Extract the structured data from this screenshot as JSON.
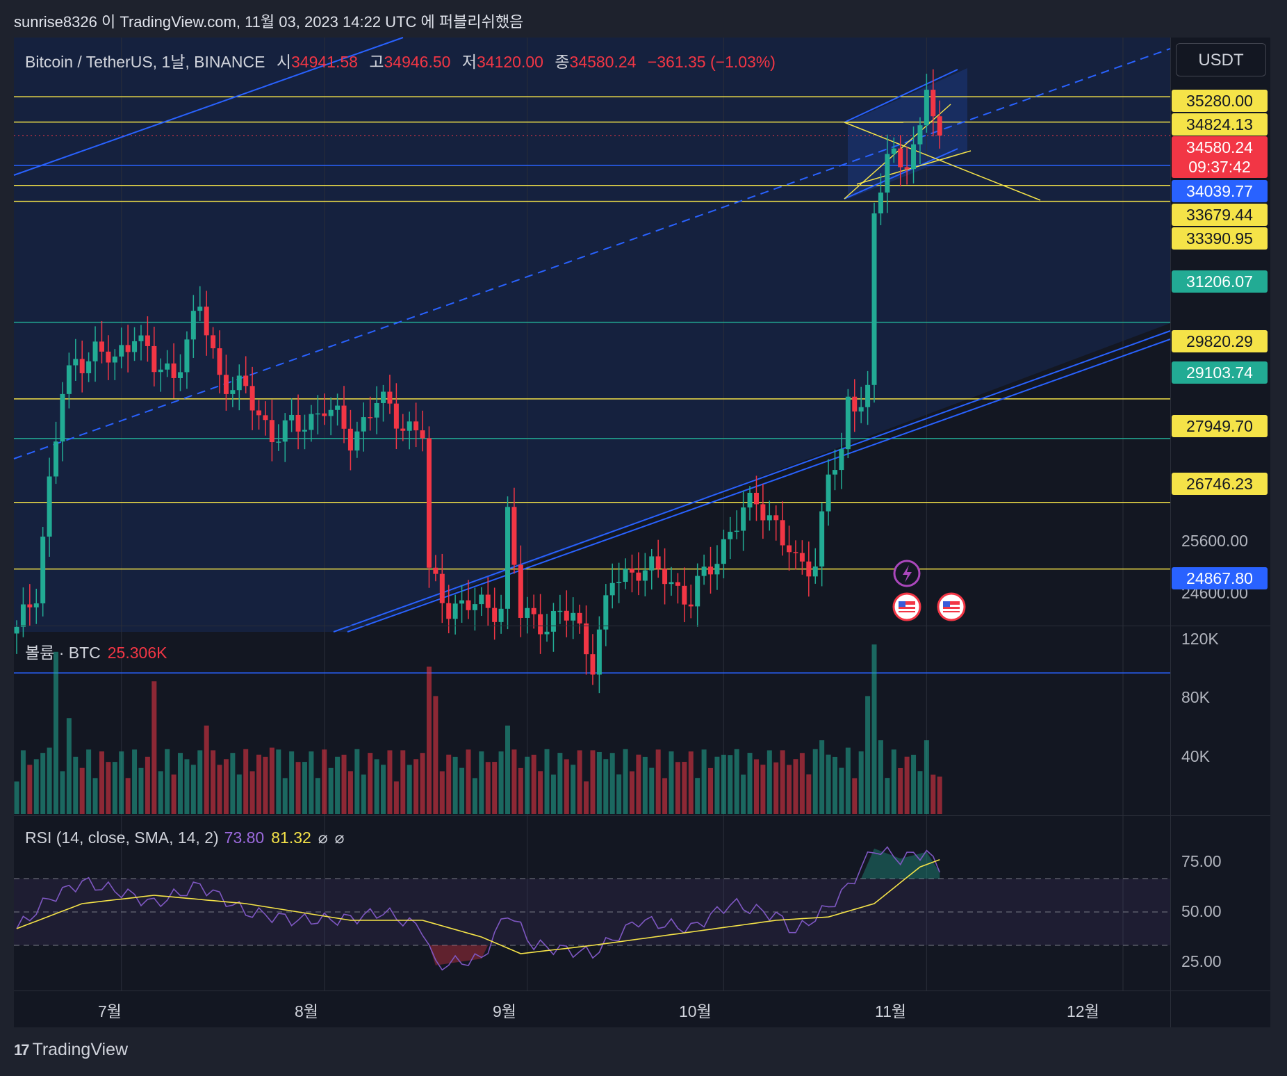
{
  "header": {
    "text": "sunrise8326 이 TradingView.com, 11월 03, 2023 14:22 UTC 에 퍼블리쉬했음"
  },
  "legend": {
    "symbol": "Bitcoin / TetherUS, 1날, BINANCE",
    "open_label": "시",
    "open": "34941.58",
    "high_label": "고",
    "high": "34946.50",
    "low_label": "저",
    "low": "34120.00",
    "close_label": "종",
    "close": "34580.24",
    "change": "−361.35 (−1.03%)"
  },
  "currency_button": "USDT",
  "volume_legend": {
    "label": "볼륨 · BTC",
    "value": "25.306K"
  },
  "rsi_legend": {
    "label": "RSI (14, close, SMA, 14, 2)",
    "rsi": "73.80",
    "sma": "81.32",
    "sym1": "⌀",
    "sym2": "⌀"
  },
  "price_ticks": [
    "25600.00",
    "24600.00"
  ],
  "price_tags": [
    {
      "text": "35280.00",
      "bg": "#f5e348",
      "fg": "#131722"
    },
    {
      "text": "34824.13",
      "bg": "#f5e348",
      "fg": "#131722"
    },
    {
      "text": "34580.24",
      "bg": "#f23645",
      "fg": "#ffffff"
    },
    {
      "text": "09:37:42",
      "bg": "#f23645",
      "fg": "#ffffff"
    },
    {
      "text": "34039.77",
      "bg": "#2962ff",
      "fg": "#ffffff"
    },
    {
      "text": "33679.44",
      "bg": "#f5e348",
      "fg": "#131722"
    },
    {
      "text": "33390.95",
      "bg": "#f5e348",
      "fg": "#131722"
    },
    {
      "text": "31206.07",
      "bg": "#22ab94",
      "fg": "#ffffff"
    },
    {
      "text": "29820.29",
      "bg": "#f5e348",
      "fg": "#131722"
    },
    {
      "text": "29103.74",
      "bg": "#22ab94",
      "fg": "#ffffff"
    },
    {
      "text": "27949.70",
      "bg": "#f5e348",
      "fg": "#131722"
    },
    {
      "text": "26746.23",
      "bg": "#f5e348",
      "fg": "#131722"
    },
    {
      "text": "24867.80",
      "bg": "#2962ff",
      "fg": "#ffffff"
    }
  ],
  "volume_ticks": [
    "120K",
    "80K",
    "40K"
  ],
  "rsi_ticks": [
    "75.00",
    "50.00",
    "25.00"
  ],
  "x_labels": [
    "7월",
    "8월",
    "9월",
    "10월",
    "11월",
    "12월"
  ],
  "footer": {
    "logo": "17",
    "brand": "TradingView"
  },
  "colors": {
    "up": "#22ab94",
    "down": "#f23645",
    "channel": "#2962ff",
    "level": "#f5e348",
    "rsi": "#7e57c2",
    "rsi_sma": "#f5e348"
  },
  "chart_data": [
    {
      "type": "candlestick",
      "title": "Bitcoin / TetherUS, 1날, BINANCE",
      "x_range": [
        "2023-06-15",
        "2023-12-15"
      ],
      "ylim": [
        24000,
        36500
      ],
      "horizontal_levels": [
        35280.0,
        34824.13,
        34039.77,
        33679.44,
        33390.95,
        31206.07,
        29820.29,
        29103.74,
        27949.7,
        26746.23,
        24867.8
      ],
      "last_price": 34580.24,
      "close_series": [
        [
          "2023-06-15",
          25580
        ],
        [
          "2023-06-18",
          26400
        ],
        [
          "2023-06-20",
          28300
        ],
        [
          "2023-06-22",
          29900
        ],
        [
          "2023-06-24",
          30500
        ],
        [
          "2023-06-27",
          30700
        ],
        [
          "2023-06-30",
          30450
        ],
        [
          "2023-07-03",
          31100
        ],
        [
          "2023-07-06",
          30350
        ],
        [
          "2023-07-09",
          30300
        ],
        [
          "2023-07-13",
          31450
        ],
        [
          "2023-07-16",
          30250
        ],
        [
          "2023-07-20",
          29900
        ],
        [
          "2023-07-24",
          29200
        ],
        [
          "2023-07-28",
          29300
        ],
        [
          "2023-08-01",
          29700
        ],
        [
          "2023-08-05",
          29100
        ],
        [
          "2023-08-09",
          29780
        ],
        [
          "2023-08-13",
          29400
        ],
        [
          "2023-08-16",
          29200
        ],
        [
          "2023-08-17",
          26600
        ],
        [
          "2023-08-20",
          26100
        ],
        [
          "2023-08-25",
          26050
        ],
        [
          "2023-08-28",
          26100
        ],
        [
          "2023-08-29",
          27700
        ],
        [
          "2023-08-31",
          25900
        ],
        [
          "2023-09-04",
          25800
        ],
        [
          "2023-09-08",
          25900
        ],
        [
          "2023-09-11",
          25100
        ],
        [
          "2023-09-14",
          26500
        ],
        [
          "2023-09-18",
          26800
        ],
        [
          "2023-09-22",
          26600
        ],
        [
          "2023-09-26",
          26200
        ],
        [
          "2023-09-30",
          26950
        ],
        [
          "2023-10-02",
          27500
        ],
        [
          "2023-10-06",
          27950
        ],
        [
          "2023-10-09",
          27600
        ],
        [
          "2023-10-12",
          26750
        ],
        [
          "2023-10-15",
          26900
        ],
        [
          "2023-10-17",
          28500
        ],
        [
          "2023-10-19",
          28700
        ],
        [
          "2023-10-20",
          29680
        ],
        [
          "2023-10-23",
          30000
        ],
        [
          "2023-10-24",
          33100
        ],
        [
          "2023-10-26",
          34150
        ],
        [
          "2023-10-28",
          34100
        ],
        [
          "2023-10-31",
          34600
        ],
        [
          "2023-11-01",
          35420
        ],
        [
          "2023-11-02",
          34940
        ],
        [
          "2023-11-03",
          34580
        ]
      ]
    },
    {
      "type": "bar",
      "title": "볼륨 · BTC",
      "ylim": [
        0,
        130000
      ],
      "last_value": 25306,
      "values": [
        [
          "2023-06-20",
          45000
        ],
        [
          "2023-06-21",
          110000
        ],
        [
          "2023-06-23",
          65000
        ],
        [
          "2023-07-06",
          90000
        ],
        [
          "2023-07-14",
          60000
        ],
        [
          "2023-07-24",
          45000
        ],
        [
          "2023-08-17",
          100000
        ],
        [
          "2023-08-18",
          80000
        ],
        [
          "2023-08-29",
          60000
        ],
        [
          "2023-09-12",
          42000
        ],
        [
          "2023-10-02",
          40000
        ],
        [
          "2023-10-09",
          35000
        ],
        [
          "2023-10-16",
          50000
        ],
        [
          "2023-10-20",
          45000
        ],
        [
          "2023-10-23",
          80000
        ],
        [
          "2023-10-24",
          115000
        ],
        [
          "2023-10-25",
          50000
        ],
        [
          "2023-11-01",
          50000
        ],
        [
          "2023-11-03",
          25306
        ]
      ],
      "ticks": [
        "120K",
        "80K",
        "40K"
      ]
    },
    {
      "type": "line",
      "title": "RSI (14, close, SMA, 14, 2)",
      "ylim": [
        0,
        100
      ],
      "bands": [
        70,
        50,
        30
      ],
      "series": [
        {
          "name": "RSI",
          "last": 73.8,
          "points": [
            [
              "2023-06-15",
              40
            ],
            [
              "2023-06-20",
              58
            ],
            [
              "2023-06-25",
              68
            ],
            [
              "2023-07-01",
              62
            ],
            [
              "2023-07-06",
              55
            ],
            [
              "2023-07-13",
              66
            ],
            [
              "2023-07-20",
              50
            ],
            [
              "2023-07-28",
              45
            ],
            [
              "2023-08-05",
              46
            ],
            [
              "2023-08-10",
              50
            ],
            [
              "2023-08-16",
              40
            ],
            [
              "2023-08-18",
              18
            ],
            [
              "2023-08-25",
              22
            ],
            [
              "2023-08-29",
              50
            ],
            [
              "2023-09-02",
              30
            ],
            [
              "2023-09-11",
              25
            ],
            [
              "2023-09-18",
              45
            ],
            [
              "2023-09-26",
              40
            ],
            [
              "2023-10-02",
              55
            ],
            [
              "2023-10-09",
              48
            ],
            [
              "2023-10-12",
              38
            ],
            [
              "2023-10-17",
              53
            ],
            [
              "2023-10-20",
              65
            ],
            [
              "2023-10-24",
              88
            ],
            [
              "2023-10-28",
              82
            ],
            [
              "2023-11-01",
              86
            ],
            [
              "2023-11-03",
              73.8
            ]
          ]
        },
        {
          "name": "RSI SMA",
          "last": 81.32,
          "points": [
            [
              "2023-06-15",
              40
            ],
            [
              "2023-06-25",
              55
            ],
            [
              "2023-07-06",
              60
            ],
            [
              "2023-07-20",
              55
            ],
            [
              "2023-08-05",
              45
            ],
            [
              "2023-08-16",
              45
            ],
            [
              "2023-08-25",
              35
            ],
            [
              "2023-08-31",
              25
            ],
            [
              "2023-09-11",
              30
            ],
            [
              "2023-09-26",
              38
            ],
            [
              "2023-10-09",
              45
            ],
            [
              "2023-10-17",
              47
            ],
            [
              "2023-10-24",
              55
            ],
            [
              "2023-10-31",
              77
            ],
            [
              "2023-11-03",
              81.32
            ]
          ]
        }
      ],
      "ticks": [
        "75.00",
        "50.00",
        "25.00"
      ]
    }
  ]
}
